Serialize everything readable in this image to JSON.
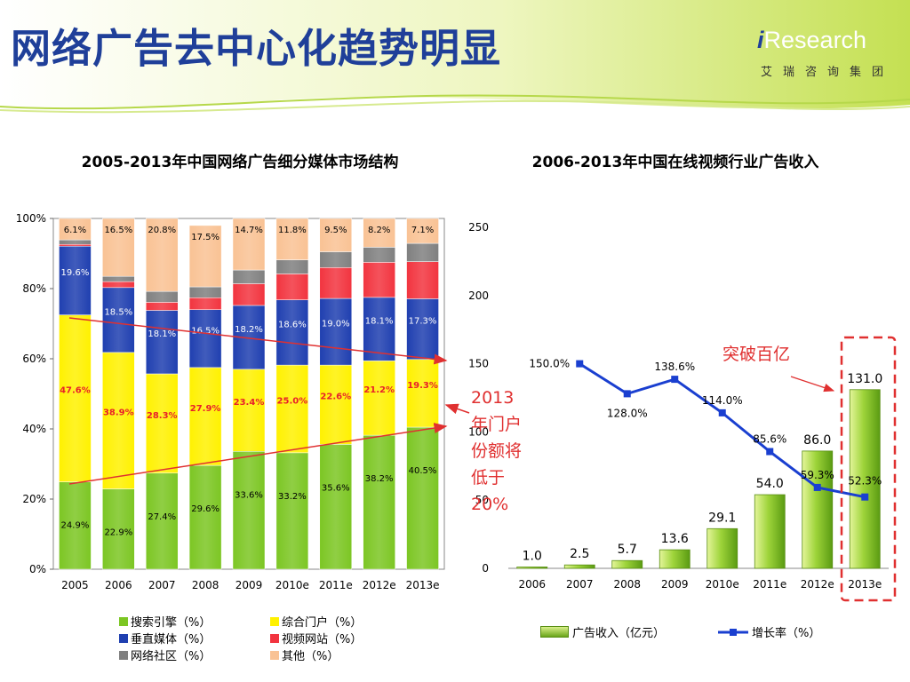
{
  "title": "网络广告去中心化趋势明显",
  "logo": {
    "brand": "Research",
    "brand_prefix": "i",
    "sub": "艾瑞咨询集团"
  },
  "colors": {
    "title": "#1f3f99",
    "search": "#7cc623",
    "portal": "#fff100",
    "vertical": "#1f3fb0",
    "video": "#f2343f",
    "community": "#808080",
    "other": "#f9c294",
    "line": "#1a3fd0",
    "annotation": "#e03030"
  },
  "chart_data": [
    {
      "type": "bar",
      "stacked": true,
      "title": "2005-2013年中国网络广告细分媒体市场结构",
      "categories": [
        "2005",
        "2006",
        "2007",
        "2008",
        "2009",
        "2010e",
        "2011e",
        "2012e",
        "2013e"
      ],
      "ylim": [
        0,
        100
      ],
      "yticks": [
        "0%",
        "20%",
        "40%",
        "60%",
        "80%",
        "100%"
      ],
      "series": [
        {
          "name": "搜索引擎（%）",
          "values": [
            24.9,
            22.9,
            27.4,
            29.6,
            33.6,
            33.2,
            35.6,
            38.2,
            40.5
          ],
          "labels": [
            "24.9%",
            "22.9%",
            "27.4%",
            "29.6%",
            "33.6%",
            "33.2%",
            "35.6%",
            "38.2%",
            "40.5%"
          ]
        },
        {
          "name": "综合门户（%）",
          "values": [
            47.6,
            38.9,
            28.3,
            27.9,
            23.4,
            25.0,
            22.6,
            21.2,
            19.3
          ],
          "labels": [
            "47.6%",
            "38.9%",
            "28.3%",
            "27.9%",
            "23.4%",
            "25.0%",
            "22.6%",
            "21.2%",
            "19.3%"
          ]
        },
        {
          "name": "垂直媒体（%）",
          "values": [
            19.6,
            18.5,
            18.1,
            16.5,
            18.2,
            18.6,
            19.0,
            18.1,
            17.3
          ],
          "labels": [
            "19.6%",
            "18.5%",
            "18.1%",
            "16.5%",
            "18.2%",
            "18.6%",
            "19.0%",
            "18.1%",
            "17.3%"
          ]
        },
        {
          "name": "视频网站（%）",
          "values": [
            0.5,
            1.7,
            2.3,
            3.4,
            6.2,
            7.4,
            8.8,
            10.0,
            10.6
          ],
          "labels": [
            "",
            "",
            "",
            "",
            "",
            "",
            "",
            "",
            ""
          ]
        },
        {
          "name": "网络社区（%）",
          "values": [
            1.3,
            1.5,
            3.1,
            3.1,
            3.9,
            4.0,
            4.5,
            4.3,
            5.2
          ],
          "labels": [
            "",
            "",
            "",
            "",
            "",
            "",
            "",
            "",
            ""
          ]
        },
        {
          "name": "其他（%）",
          "values": [
            6.1,
            16.5,
            20.8,
            17.5,
            14.7,
            11.8,
            9.5,
            8.2,
            7.1
          ],
          "labels": [
            "6.1%",
            "16.5%",
            "20.8%",
            "17.5%",
            "14.7%",
            "11.8%",
            "9.5%",
            "8.2%",
            "7.1%"
          ]
        }
      ],
      "legend": [
        "搜索引擎（%）",
        "综合门户（%）",
        "垂直媒体（%）",
        "视频网站（%）",
        "网络社区（%）",
        "其他（%）"
      ],
      "legend_position": "bottom"
    },
    {
      "type": "bar+line",
      "title": "2006-2013年中国在线视频行业广告收入",
      "categories": [
        "2006",
        "2007",
        "2008",
        "2009",
        "2010e",
        "2011e",
        "2012e",
        "2013e"
      ],
      "ylim": [
        0,
        250
      ],
      "yticks": [
        "0",
        "50",
        "100",
        "150",
        "200",
        "250"
      ],
      "series": [
        {
          "name": "广告收入（亿元）",
          "type": "bar",
          "values": [
            1.0,
            2.5,
            5.7,
            13.6,
            29.1,
            54.0,
            86.0,
            131.0
          ],
          "labels": [
            "1.0",
            "2.5",
            "5.7",
            "13.6",
            "29.1",
            "54.0",
            "86.0",
            "131.0"
          ]
        },
        {
          "name": "增长率（%）",
          "type": "line",
          "values": [
            null,
            150.0,
            128.0,
            138.6,
            114.0,
            85.6,
            59.3,
            52.3
          ],
          "labels": [
            "",
            "150.0%",
            "128.0%",
            "138.6%",
            "114.0%",
            "85.6%",
            "59.3%",
            "52.3%"
          ]
        }
      ],
      "legend": [
        "广告收入（亿元）",
        "增长率（%）"
      ],
      "legend_position": "bottom"
    }
  ],
  "annotations": {
    "portal_note": "2013年门户份额将低于20%",
    "video_note": "突破百亿"
  }
}
